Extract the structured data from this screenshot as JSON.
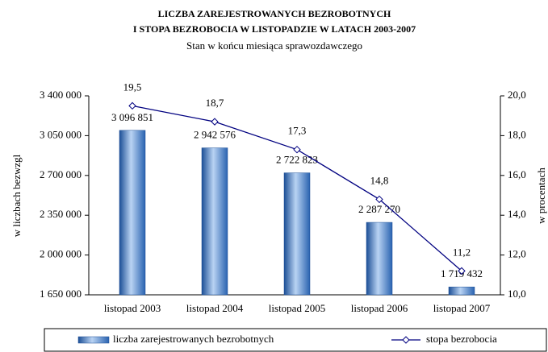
{
  "chart_data": {
    "type": "bar",
    "title": [
      "LICZBA ZAREJESTROWANYCH BEZROBOTNYCH",
      "I STOPA BEZROBOCIA W LISTOPADZIE W LATACH 2003-2007"
    ],
    "subtitle": "Stan w końcu miesiąca sprawozdawczego",
    "ylabel": "w liczbach bezwzgl",
    "y2label": "w procentach",
    "categories": [
      "listopad 2003",
      "listopad 2004",
      "listopad 2005",
      "listopad 2006",
      "listopad 2007"
    ],
    "series": [
      {
        "name": "liczba zarejestrowanych bezrobotnych",
        "type": "bar",
        "color": "#2f6fc0",
        "values": [
          3096851,
          2942576,
          2722823,
          2287270,
          1719432
        ],
        "value_labels": [
          "3 096 851",
          "2 942 576",
          "2 722 823",
          "2 287 270",
          "1 719 432"
        ]
      },
      {
        "name": "stopa bezrobocia",
        "type": "line",
        "axis": "y2",
        "color": "#000080",
        "values": [
          19.5,
          18.7,
          17.3,
          14.8,
          11.2
        ],
        "value_labels": [
          "19,5",
          "18,7",
          "17,3",
          "14,8",
          "11,2"
        ]
      }
    ],
    "ylim": [
      1650000,
      3400000
    ],
    "yticks": [
      {
        "value": 1650000,
        "label": "1 650 000"
      },
      {
        "value": 2000000,
        "label": "2 000 000"
      },
      {
        "value": 2350000,
        "label": "2 350 000"
      },
      {
        "value": 2700000,
        "label": "2 700 000"
      },
      {
        "value": 3050000,
        "label": "3 050 000"
      },
      {
        "value": 3400000,
        "label": "3 400 000"
      }
    ],
    "y2lim": [
      10,
      20
    ],
    "y2ticks": [
      {
        "value": 10,
        "label": "10,0"
      },
      {
        "value": 12,
        "label": "12,0"
      },
      {
        "value": 14,
        "label": "14,0"
      },
      {
        "value": 16,
        "label": "16,0"
      },
      {
        "value": 18,
        "label": "18,0"
      },
      {
        "value": 20,
        "label": "20,0"
      }
    ],
    "legend": "bottom"
  }
}
